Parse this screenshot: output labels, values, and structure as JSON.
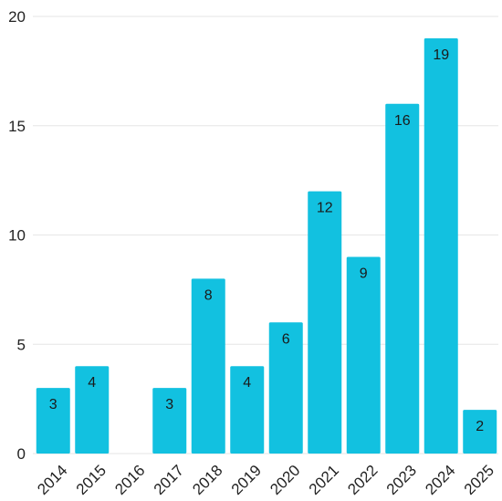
{
  "chart_data": {
    "type": "bar",
    "title": "",
    "xlabel": "",
    "ylabel": "",
    "categories": [
      "2014",
      "2015",
      "2016",
      "2017",
      "2018",
      "2019",
      "2020",
      "2021",
      "2022",
      "2023",
      "2024",
      "2025"
    ],
    "values": [
      3,
      4,
      0,
      3,
      8,
      4,
      6,
      12,
      9,
      16,
      19,
      2
    ],
    "data_labels": [
      "3",
      "4",
      "",
      "3",
      "8",
      "4",
      "6",
      "12",
      "9",
      "16",
      "19",
      "2"
    ],
    "ylim": [
      0,
      20
    ],
    "yticks": [
      0,
      5,
      10,
      15,
      20
    ],
    "grid": true,
    "legend": "none",
    "colors": {
      "bar": "#12c1e0",
      "grid": "#e6e6e6",
      "text": "#222222"
    }
  }
}
